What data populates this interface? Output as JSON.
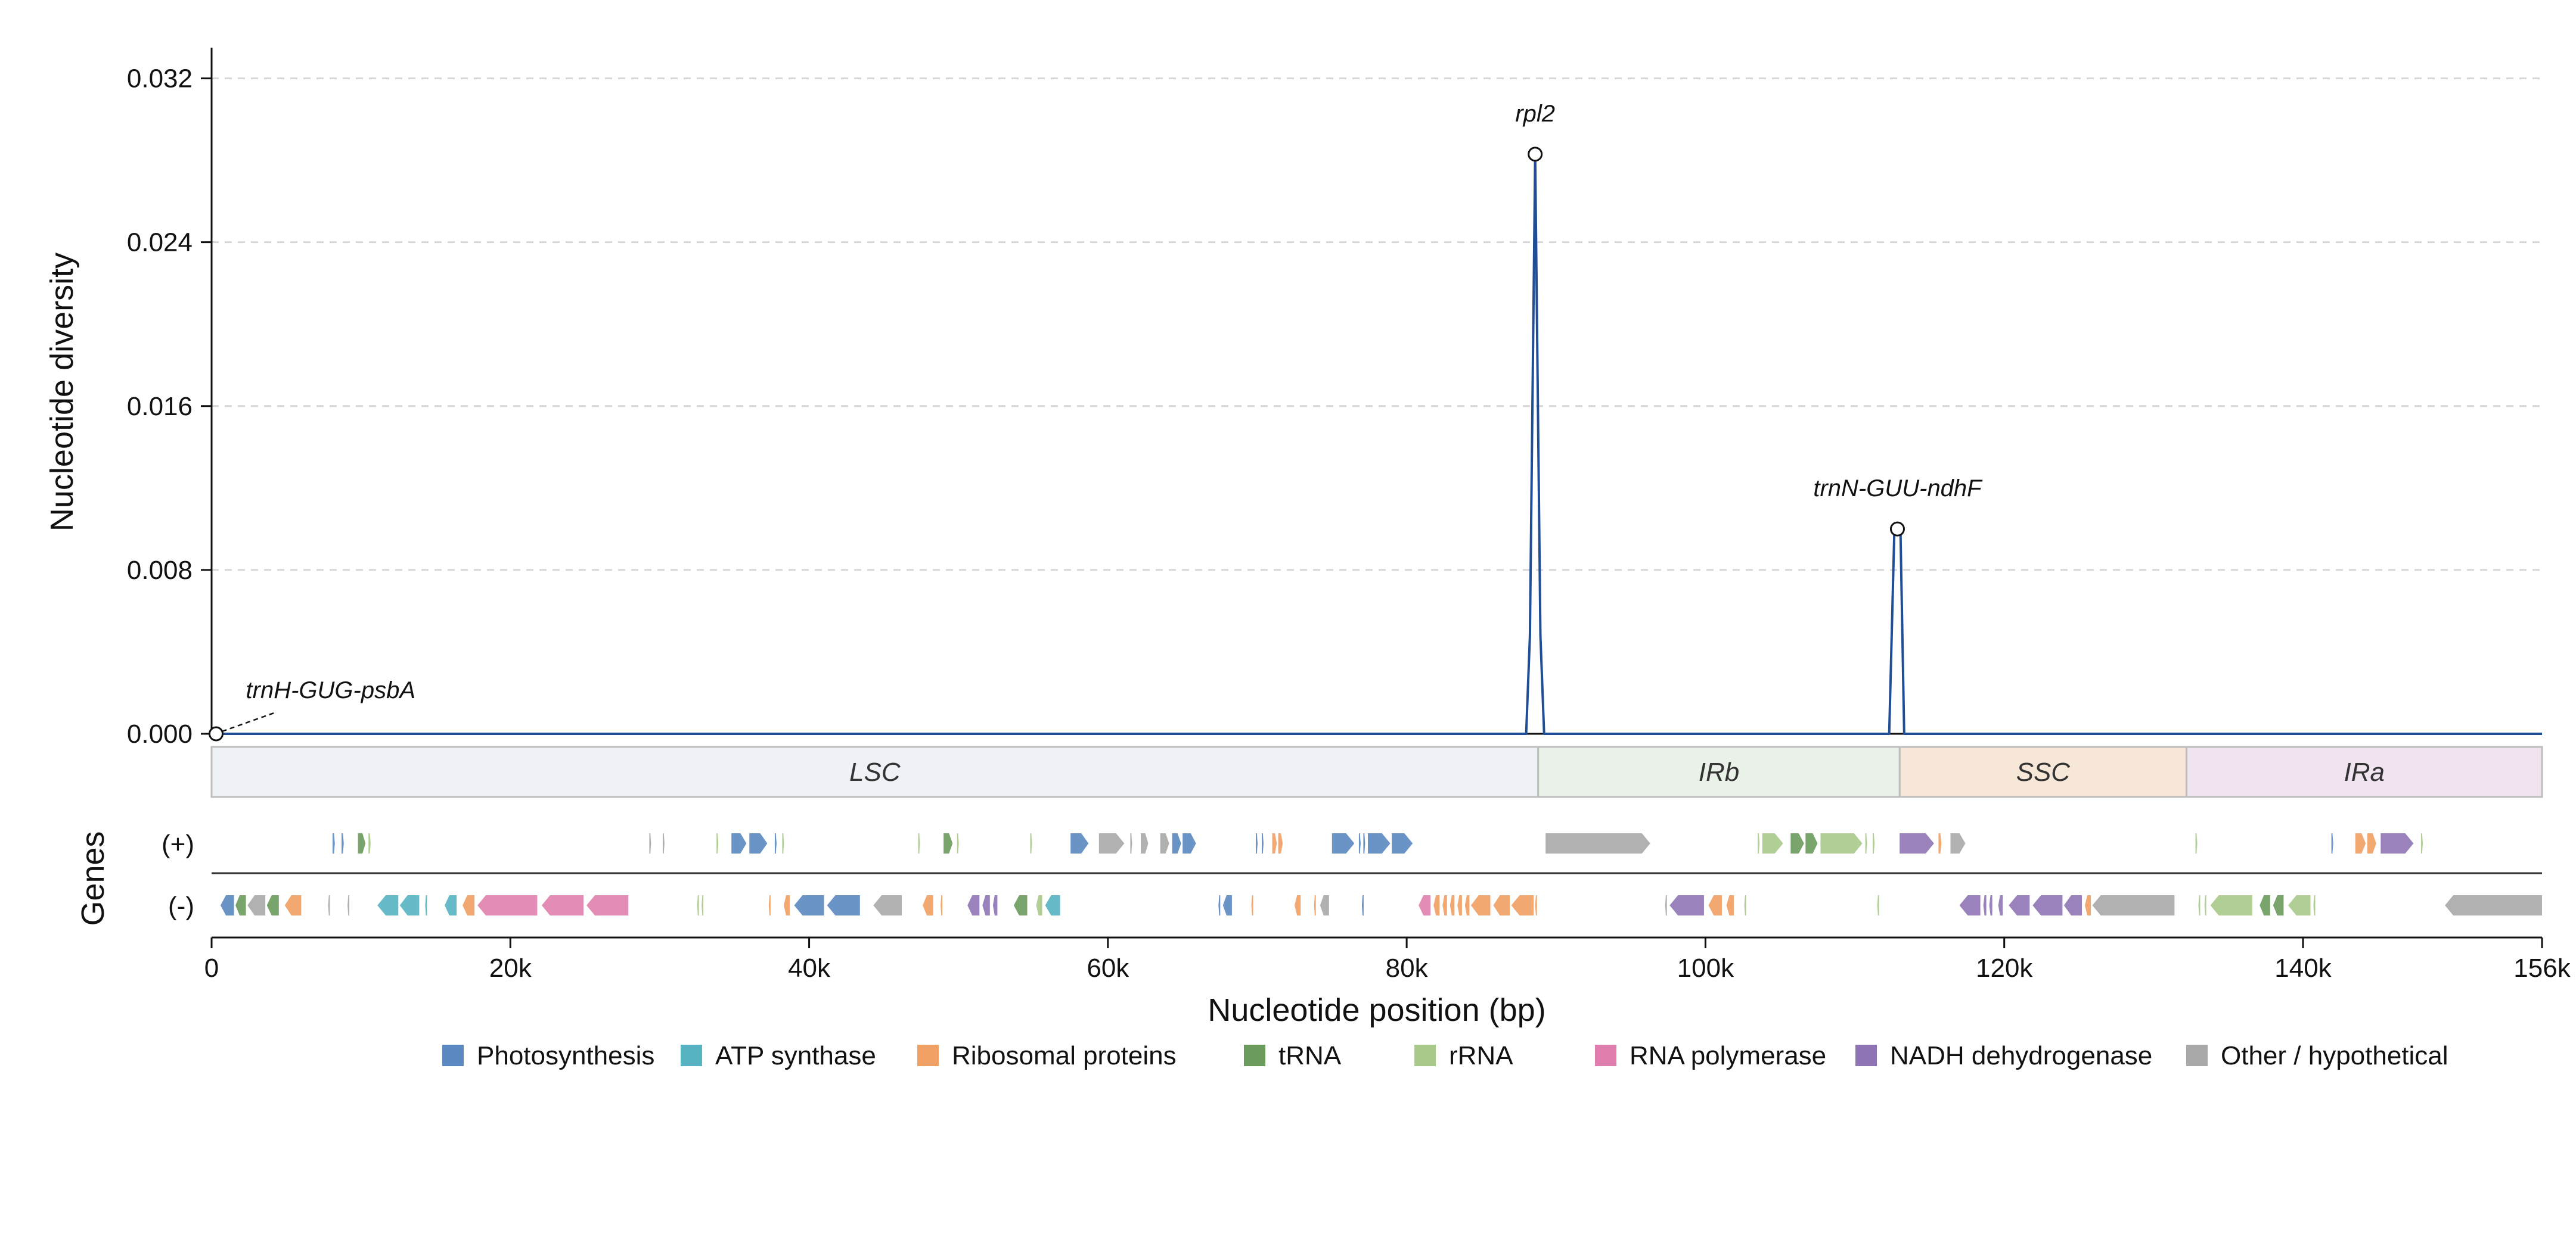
{
  "chart_data": {
    "type": "line",
    "xlabel": "Nucleotide position (bp)",
    "ylabel": "Nucleotide diversity",
    "genes_label": "Genes",
    "xlim": [
      0,
      156000
    ],
    "ylim": [
      0,
      0.0335
    ],
    "x_ticks": [
      0,
      20000,
      40000,
      60000,
      80000,
      100000,
      120000,
      140000,
      156000
    ],
    "x_tick_labels": [
      "0",
      "20k",
      "40k",
      "60k",
      "80k",
      "100k",
      "120k",
      "140k",
      "156k"
    ],
    "y_ticks": [
      0,
      0.008,
      0.016,
      0.024,
      0.032
    ],
    "y_tick_labels": [
      "0.000",
      "0.008",
      "0.016",
      "0.024",
      "0.032"
    ],
    "grid": "horizontal dashed",
    "series": [
      {
        "color": "#1f4e96",
        "x": [
          0,
          88000,
          88250,
          88600,
          88950,
          89200,
          89500,
          112300,
          112650,
          112850,
          113050,
          113300,
          156000
        ],
        "y": [
          0,
          0,
          0.0048,
          0.0283,
          0.0048,
          0,
          0,
          0,
          0.0101,
          0.0101,
          0.0101,
          0,
          0
        ]
      }
    ],
    "annotations": [
      {
        "label": "rpl2",
        "x": 88600,
        "y": 0.0283
      },
      {
        "label": "trnN-GUU-ndhF",
        "x": 112850,
        "y": 0.01
      },
      {
        "label": "trnH-GUG-psbA",
        "x": 300,
        "y": 0.0
      }
    ],
    "regions": [
      {
        "label": "LSC",
        "start": 0,
        "end": 88800,
        "color": "#eef2f6"
      },
      {
        "label": "IRb",
        "start": 88800,
        "end": 113000,
        "color": "#eaf1e8"
      },
      {
        "label": "SSC",
        "start": 113000,
        "end": 132200,
        "color": "#f7e7d8"
      },
      {
        "label": "IRa",
        "start": 132200,
        "end": 156000,
        "color": "#f0e4f1"
      }
    ],
    "strands": {
      "plus": "(+)",
      "minus": "(-)"
    },
    "categories": [
      {
        "name": "Photosynthesis",
        "color": "#5b88c0"
      },
      {
        "name": "ATP synthase",
        "color": "#56b3c2"
      },
      {
        "name": "Ribosomal proteins",
        "color": "#f0a062"
      },
      {
        "name": "tRNA",
        "color": "#6a9a5c"
      },
      {
        "name": "rRNA",
        "color": "#a9c98a"
      },
      {
        "name": "RNA polymerase",
        "color": "#e07fae"
      },
      {
        "name": "NADH dehydrogenase",
        "color": "#8f74b5"
      },
      {
        "name": "Other / hypothetical",
        "color": "#a9a9a9"
      }
    ],
    "genes_plus": [
      [
        8100,
        8250,
        0
      ],
      [
        8700,
        8850,
        0
      ],
      [
        9800,
        10300,
        3
      ],
      [
        10500,
        10650,
        4
      ],
      [
        29300,
        29400,
        7
      ],
      [
        30200,
        30300,
        7
      ],
      [
        33800,
        33900,
        4
      ],
      [
        34800,
        35800,
        0
      ],
      [
        36000,
        37200,
        0
      ],
      [
        37700,
        37800,
        0
      ],
      [
        38200,
        38300,
        4
      ],
      [
        47300,
        47400,
        4
      ],
      [
        49000,
        49600,
        3
      ],
      [
        49900,
        50000,
        4
      ],
      [
        54800,
        54900,
        4
      ],
      [
        57500,
        58700,
        0
      ],
      [
        59400,
        61100,
        7
      ],
      [
        61500,
        61600,
        7
      ],
      [
        62200,
        62700,
        7
      ],
      [
        63500,
        64100,
        7
      ],
      [
        64300,
        64900,
        0
      ],
      [
        65000,
        65900,
        0
      ],
      [
        69900,
        70000,
        0
      ],
      [
        70300,
        70400,
        0
      ],
      [
        71000,
        71300,
        2
      ],
      [
        71400,
        71700,
        2
      ],
      [
        75000,
        76500,
        0
      ],
      [
        76800,
        76900,
        0
      ],
      [
        77100,
        77200,
        0
      ],
      [
        77400,
        78900,
        0
      ],
      [
        79000,
        80400,
        0
      ],
      [
        89300,
        96300,
        7
      ],
      [
        103500,
        103600,
        4
      ],
      [
        103800,
        105200,
        4
      ],
      [
        105700,
        106600,
        3
      ],
      [
        106700,
        107500,
        3
      ],
      [
        107700,
        110500,
        4
      ],
      [
        110700,
        110800,
        4
      ],
      [
        111200,
        111300,
        4
      ],
      [
        113000,
        115300,
        6
      ],
      [
        115600,
        115800,
        2
      ],
      [
        116400,
        117400,
        7
      ],
      [
        132800,
        132900,
        4
      ],
      [
        141900,
        142000,
        0
      ],
      [
        143500,
        144200,
        2
      ],
      [
        144300,
        144900,
        2
      ],
      [
        145200,
        147400,
        6
      ],
      [
        147900,
        148000,
        4
      ]
    ],
    "genes_minus": [
      [
        600,
        1500,
        0
      ],
      [
        1600,
        2300,
        3
      ],
      [
        2400,
        3600,
        7
      ],
      [
        3700,
        4500,
        3
      ],
      [
        4900,
        6000,
        2
      ],
      [
        7800,
        7900,
        7
      ],
      [
        9100,
        9200,
        7
      ],
      [
        11100,
        12500,
        1
      ],
      [
        12600,
        13900,
        1
      ],
      [
        14300,
        14400,
        1
      ],
      [
        15600,
        16400,
        1
      ],
      [
        16800,
        17600,
        2
      ],
      [
        17800,
        21800,
        5
      ],
      [
        22100,
        24900,
        5
      ],
      [
        25100,
        27900,
        5
      ],
      [
        32500,
        32600,
        4
      ],
      [
        32800,
        32900,
        4
      ],
      [
        37300,
        37400,
        2
      ],
      [
        38300,
        38700,
        2
      ],
      [
        39000,
        41000,
        0
      ],
      [
        41200,
        43400,
        0
      ],
      [
        44300,
        46200,
        7
      ],
      [
        47600,
        48300,
        2
      ],
      [
        48800,
        48900,
        2
      ],
      [
        50600,
        51400,
        6
      ],
      [
        51600,
        52100,
        6
      ],
      [
        52300,
        52600,
        6
      ],
      [
        53700,
        54600,
        3
      ],
      [
        55200,
        55600,
        4
      ],
      [
        55800,
        56800,
        1
      ],
      [
        67400,
        67500,
        0
      ],
      [
        67700,
        68300,
        0
      ],
      [
        69600,
        69700,
        2
      ],
      [
        72500,
        72900,
        2
      ],
      [
        73800,
        73900,
        2
      ],
      [
        74200,
        74800,
        7
      ],
      [
        77000,
        77100,
        0
      ],
      [
        80800,
        81600,
        5
      ],
      [
        81800,
        82200,
        2
      ],
      [
        82400,
        82700,
        2
      ],
      [
        82900,
        83200,
        2
      ],
      [
        83400,
        83700,
        2
      ],
      [
        83900,
        84200,
        2
      ],
      [
        84300,
        85600,
        2
      ],
      [
        85800,
        86900,
        2
      ],
      [
        87000,
        88500,
        2
      ],
      [
        88600,
        88700,
        2
      ],
      [
        97300,
        97400,
        7
      ],
      [
        97600,
        99900,
        6
      ],
      [
        100200,
        101100,
        2
      ],
      [
        101400,
        101900,
        2
      ],
      [
        102600,
        102700,
        4
      ],
      [
        111500,
        111600,
        4
      ],
      [
        117000,
        118400,
        6
      ],
      [
        118600,
        118800,
        6
      ],
      [
        119000,
        119200,
        6
      ],
      [
        119600,
        119900,
        6
      ],
      [
        120300,
        121700,
        6
      ],
      [
        121900,
        123900,
        6
      ],
      [
        124000,
        125200,
        6
      ],
      [
        125400,
        125800,
        2
      ],
      [
        125900,
        131400,
        7
      ],
      [
        133000,
        133100,
        4
      ],
      [
        133400,
        133500,
        4
      ],
      [
        133800,
        136600,
        4
      ],
      [
        137100,
        137800,
        3
      ],
      [
        138000,
        138700,
        3
      ],
      [
        139000,
        140500,
        4
      ],
      [
        140700,
        140800,
        4
      ],
      [
        149500,
        156000,
        7
      ]
    ]
  }
}
